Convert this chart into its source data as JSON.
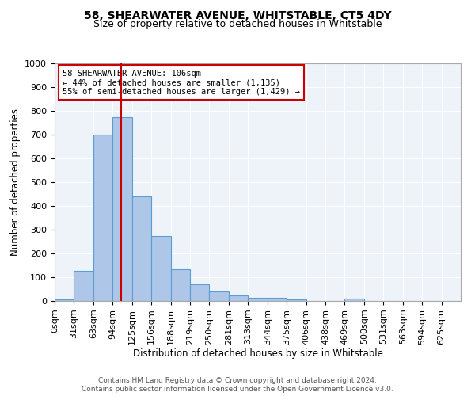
{
  "title1": "58, SHEARWATER AVENUE, WHITSTABLE, CT5 4DY",
  "title2": "Size of property relative to detached houses in Whitstable",
  "xlabel": "Distribution of detached houses by size in Whitstable",
  "ylabel": "Number of detached properties",
  "bar_labels": [
    "0sqm",
    "31sqm",
    "63sqm",
    "94sqm",
    "125sqm",
    "156sqm",
    "188sqm",
    "219sqm",
    "250sqm",
    "281sqm",
    "313sqm",
    "344sqm",
    "375sqm",
    "406sqm",
    "438sqm",
    "469sqm",
    "500sqm",
    "531sqm",
    "563sqm",
    "594sqm",
    "625sqm"
  ],
  "bar_values": [
    8,
    128,
    700,
    775,
    440,
    275,
    135,
    70,
    40,
    25,
    15,
    12,
    8,
    0,
    0,
    10,
    0,
    0,
    0,
    0,
    0
  ],
  "bar_color": "#aec6e8",
  "bar_edge_color": "#5a9fd4",
  "property_line_x": 106,
  "bin_width": 31,
  "annotation_title": "58 SHEARWATER AVENUE: 106sqm",
  "annotation_line1": "← 44% of detached houses are smaller (1,135)",
  "annotation_line2": "55% of semi-detached houses are larger (1,429) →",
  "annotation_box_color": "#ffffff",
  "annotation_border_color": "#cc0000",
  "vline_color": "#cc0000",
  "ylim": [
    0,
    1000
  ],
  "yticks": [
    0,
    100,
    200,
    300,
    400,
    500,
    600,
    700,
    800,
    900,
    1000
  ],
  "footer1": "Contains HM Land Registry data © Crown copyright and database right 2024.",
  "footer2": "Contains public sector information licensed under the Open Government Licence v3.0.",
  "bg_color": "#eef2f9",
  "fig_bg": "#ffffff"
}
